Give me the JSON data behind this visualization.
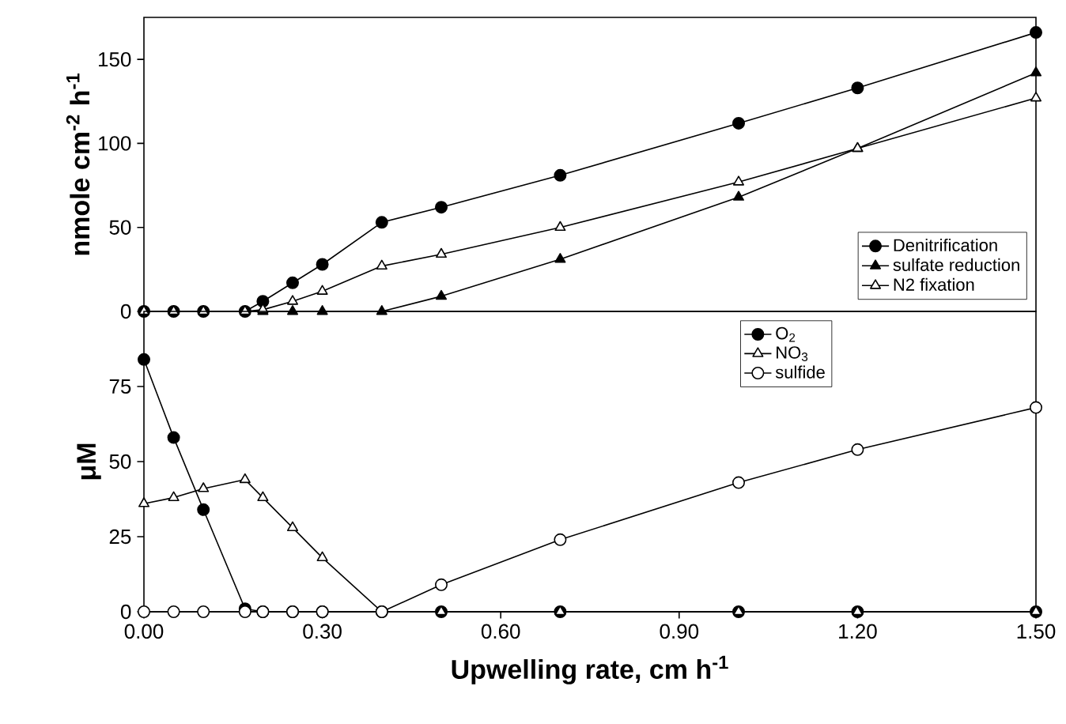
{
  "chart_data": [
    {
      "type": "line",
      "ylabel": "nmole cm$^{-2}$ h$^{-1}$",
      "x": [
        0,
        0.05,
        0.1,
        0.17,
        0.2,
        0.25,
        0.3,
        0.4,
        0.5,
        0.7,
        1.0,
        1.2,
        1.5
      ],
      "series": [
        {
          "name": "Denitrification",
          "color": "#000000",
          "marker": "circle",
          "values": [
            0,
            0,
            0,
            0,
            6,
            17,
            28,
            53,
            62,
            81,
            112,
            133,
            166
          ]
        },
        {
          "name": "sulfate reduction",
          "color": "#000000",
          "marker": "triangle",
          "values": [
            0,
            0,
            0,
            0,
            0,
            0,
            0,
            0,
            9,
            31,
            68,
            97,
            142
          ]
        },
        {
          "name": "N2 fixation",
          "color": "#ffffff",
          "marker": "triangle",
          "values": [
            0,
            0,
            0,
            0,
            1,
            6,
            12,
            27,
            34,
            50,
            77,
            97,
            127
          ]
        }
      ],
      "xlim": [
        0,
        1.5
      ],
      "ylim": [
        0,
        175
      ],
      "yticks": [
        0,
        50,
        100,
        150
      ],
      "tick_labels": "y",
      "legend": "bottom right",
      "grid": false,
      "line_style": "solid"
    },
    {
      "type": "line",
      "xlabel": "Upwelling rate, cm h$^{-1}$",
      "ylabel": "μM",
      "x": [
        0,
        0.05,
        0.1,
        0.17,
        0.2,
        0.25,
        0.3,
        0.4,
        0.5,
        0.7,
        1.0,
        1.2,
        1.5
      ],
      "series": [
        {
          "name": "O$_{2}$",
          "color": "#000000",
          "marker": "circle",
          "values": [
            84,
            58,
            34,
            1,
            0,
            0,
            0,
            0,
            0,
            0,
            0,
            0,
            0
          ]
        },
        {
          "name": "NO$_{3}$",
          "color": "#ffffff",
          "marker": "triangle",
          "values": [
            36,
            38,
            41,
            44,
            38,
            28,
            18,
            0,
            0,
            0,
            0,
            0,
            0
          ]
        },
        {
          "name": "sulfide",
          "color": "#ffffff",
          "marker": "circle",
          "values": [
            0,
            0,
            0,
            0,
            0,
            0,
            0,
            0,
            9,
            24,
            43,
            54,
            68
          ]
        }
      ],
      "xlim": [
        0,
        1.5
      ],
      "xticks": [
        {
          "value": 0,
          "label": "0.00"
        },
        {
          "value": 0.3,
          "label": "0.30"
        },
        {
          "value": 0.6,
          "label": "0.60"
        },
        {
          "value": 0.9,
          "label": "0.90"
        },
        {
          "value": 1.2,
          "label": "1.20"
        },
        {
          "value": 1.5,
          "label": "1.50"
        }
      ],
      "ylim": [
        0,
        100
      ],
      "yticks": [
        0,
        25,
        50,
        75
      ],
      "legend": "top",
      "grid": false,
      "line_style": "solid"
    }
  ]
}
